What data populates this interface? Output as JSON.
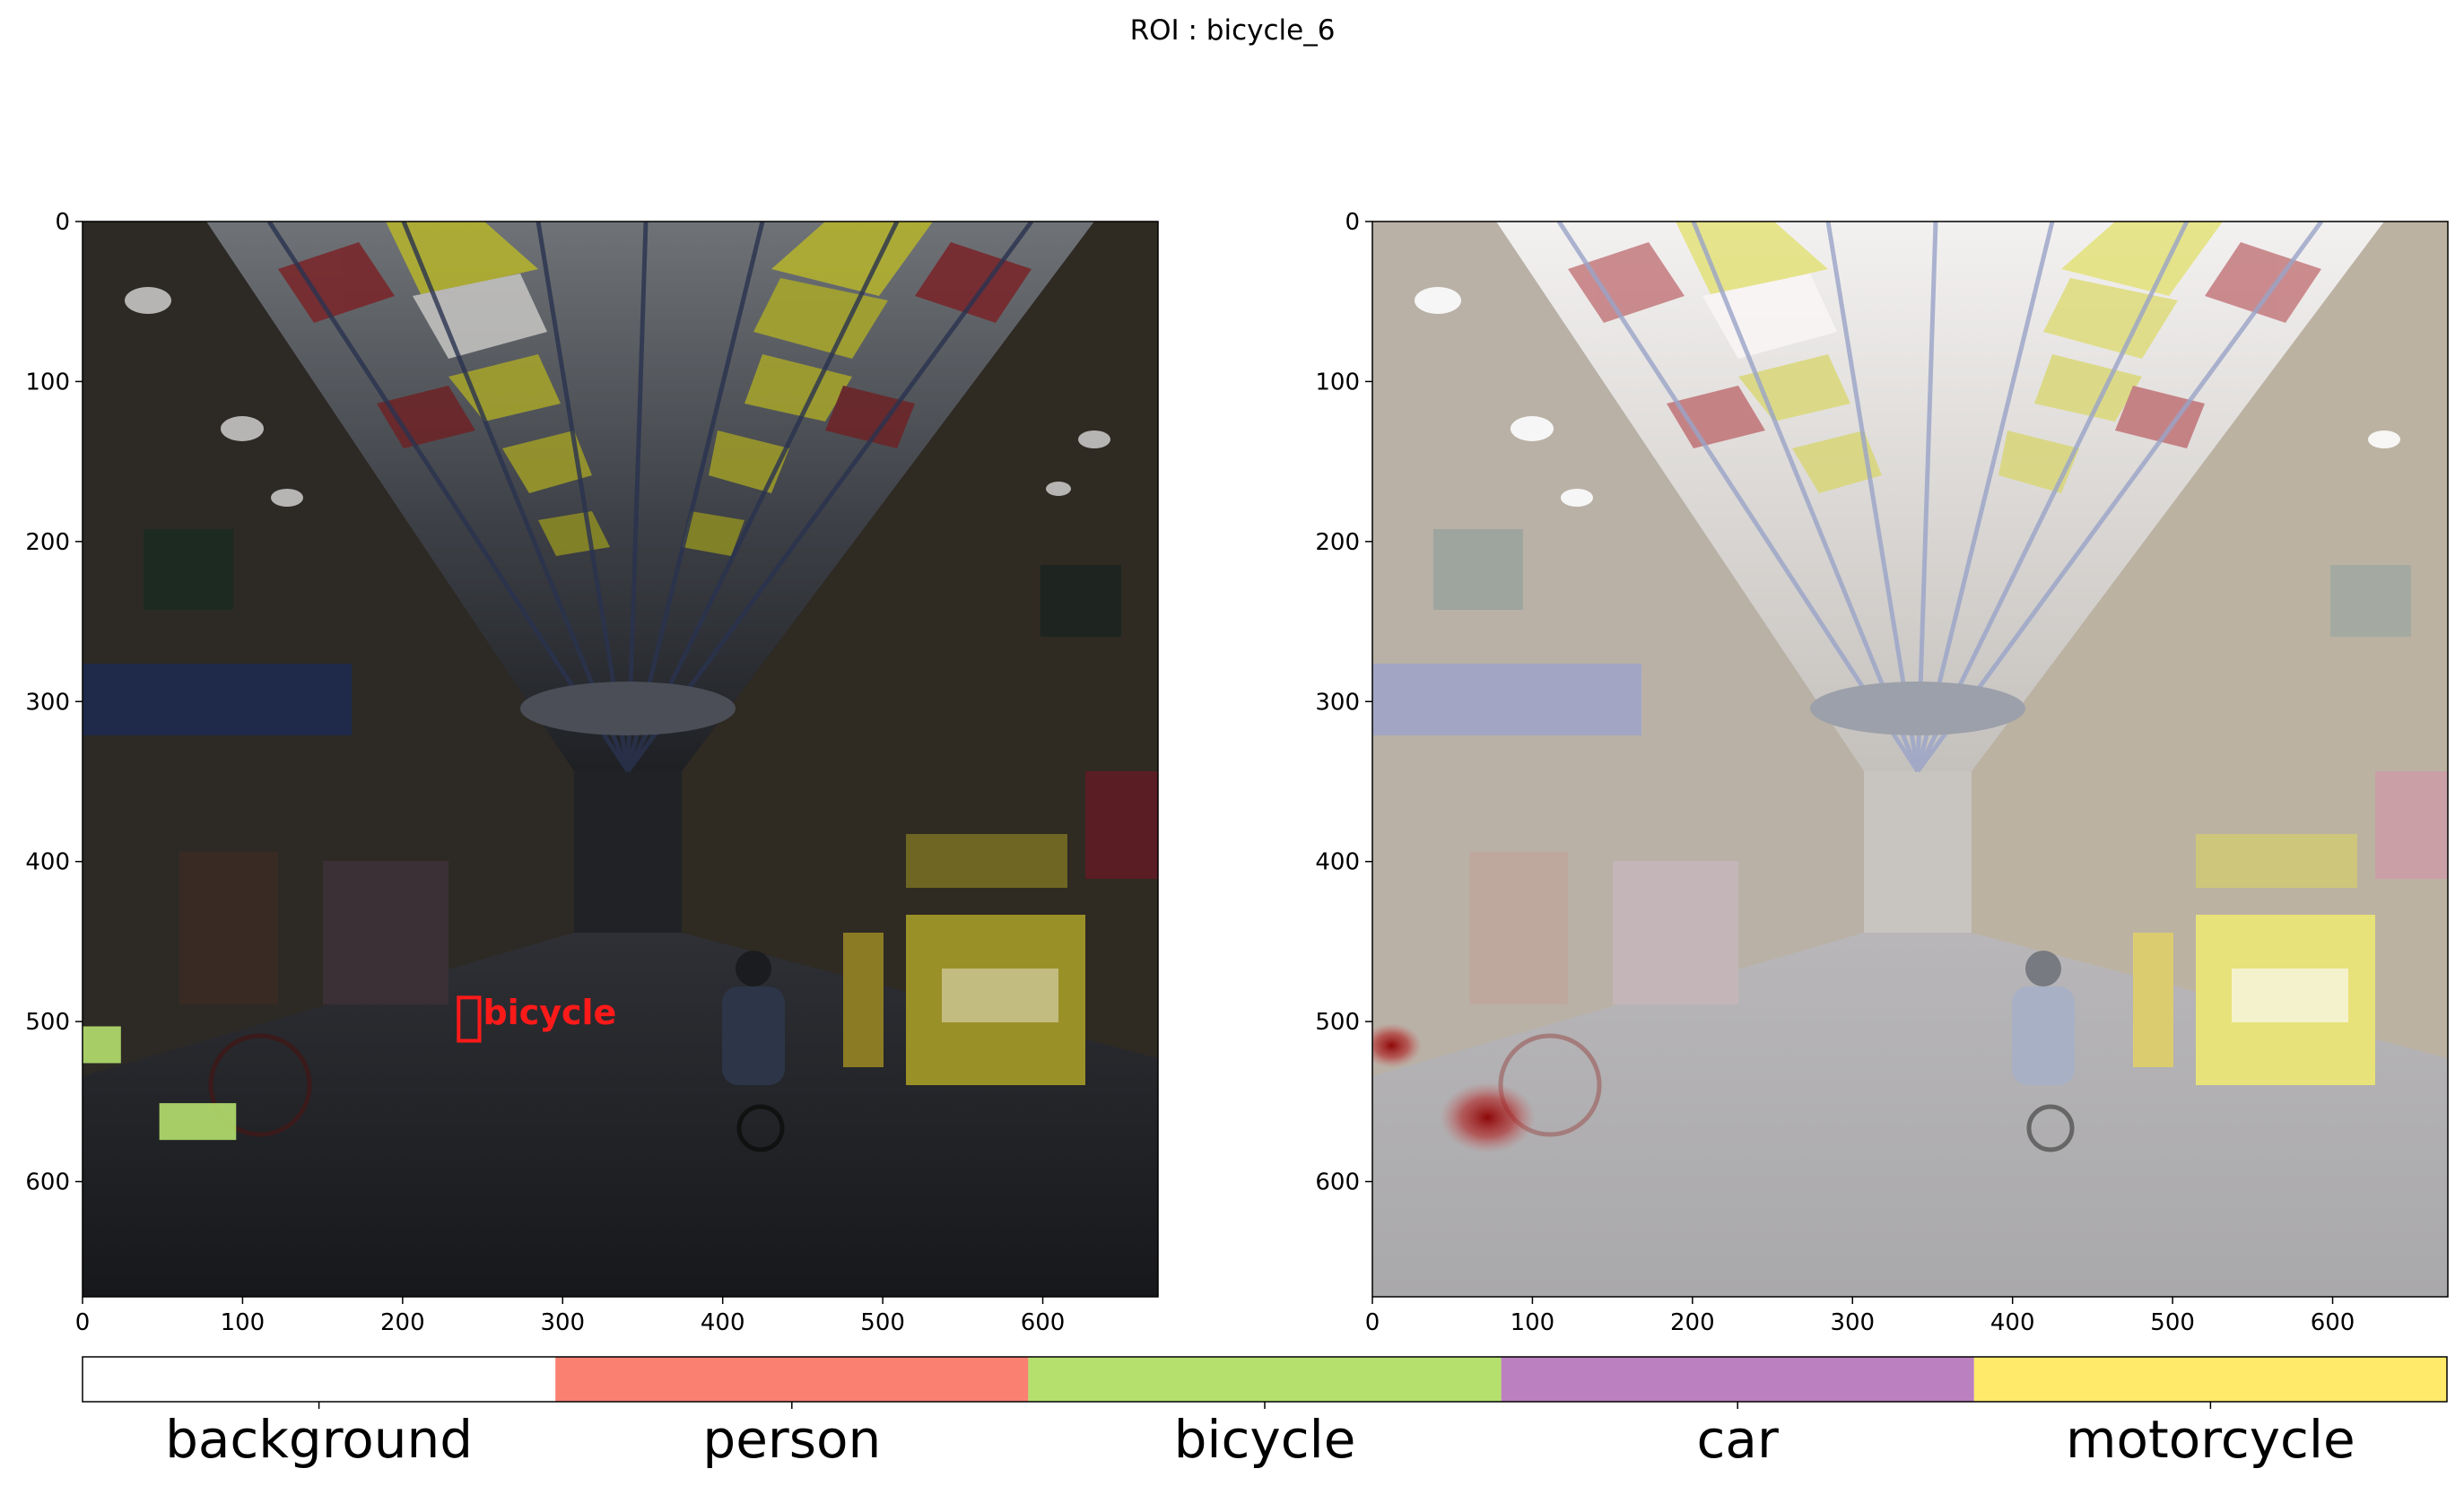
{
  "suptitle": "ROI : bicycle_6",
  "chart_data": [
    {
      "type": "image-overlay",
      "panel": "left",
      "description_visible": "street arcade photo, darkened, with segmentation overlay",
      "xlim": [
        0,
        672
      ],
      "ylim": [
        672,
        0
      ],
      "xticks": [
        0,
        100,
        200,
        300,
        400,
        500,
        600
      ],
      "yticks": [
        0,
        100,
        200,
        300,
        400,
        500,
        600
      ],
      "roi_box": {
        "label": "bicycle",
        "x": 235,
        "y": 485,
        "w": 13,
        "h": 27,
        "color": "#ff1a1a"
      },
      "bicycle_mask_regions": [
        {
          "x": 0,
          "y": 503,
          "w": 24,
          "h": 23
        },
        {
          "x": 48,
          "y": 551,
          "w": 48,
          "h": 23
        }
      ]
    },
    {
      "type": "image-overlay",
      "panel": "right",
      "xlim": [
        0,
        672
      ],
      "ylim": [
        672,
        0
      ],
      "xticks": [
        0,
        100,
        200,
        300,
        400,
        500,
        600
      ],
      "yticks": [
        0,
        100,
        200,
        300,
        400,
        500,
        600
      ],
      "heat_spots": [
        {
          "x": 12,
          "y": 515,
          "r": 14
        },
        {
          "x": 72,
          "y": 560,
          "r": 22
        }
      ]
    }
  ],
  "legend": {
    "labels": [
      "background",
      "person",
      "bicycle",
      "car",
      "motorcycle"
    ],
    "colors": [
      "#ffffff",
      "#fa8072",
      "#b5e06e",
      "#bb80bf",
      "#ffea6a"
    ]
  }
}
